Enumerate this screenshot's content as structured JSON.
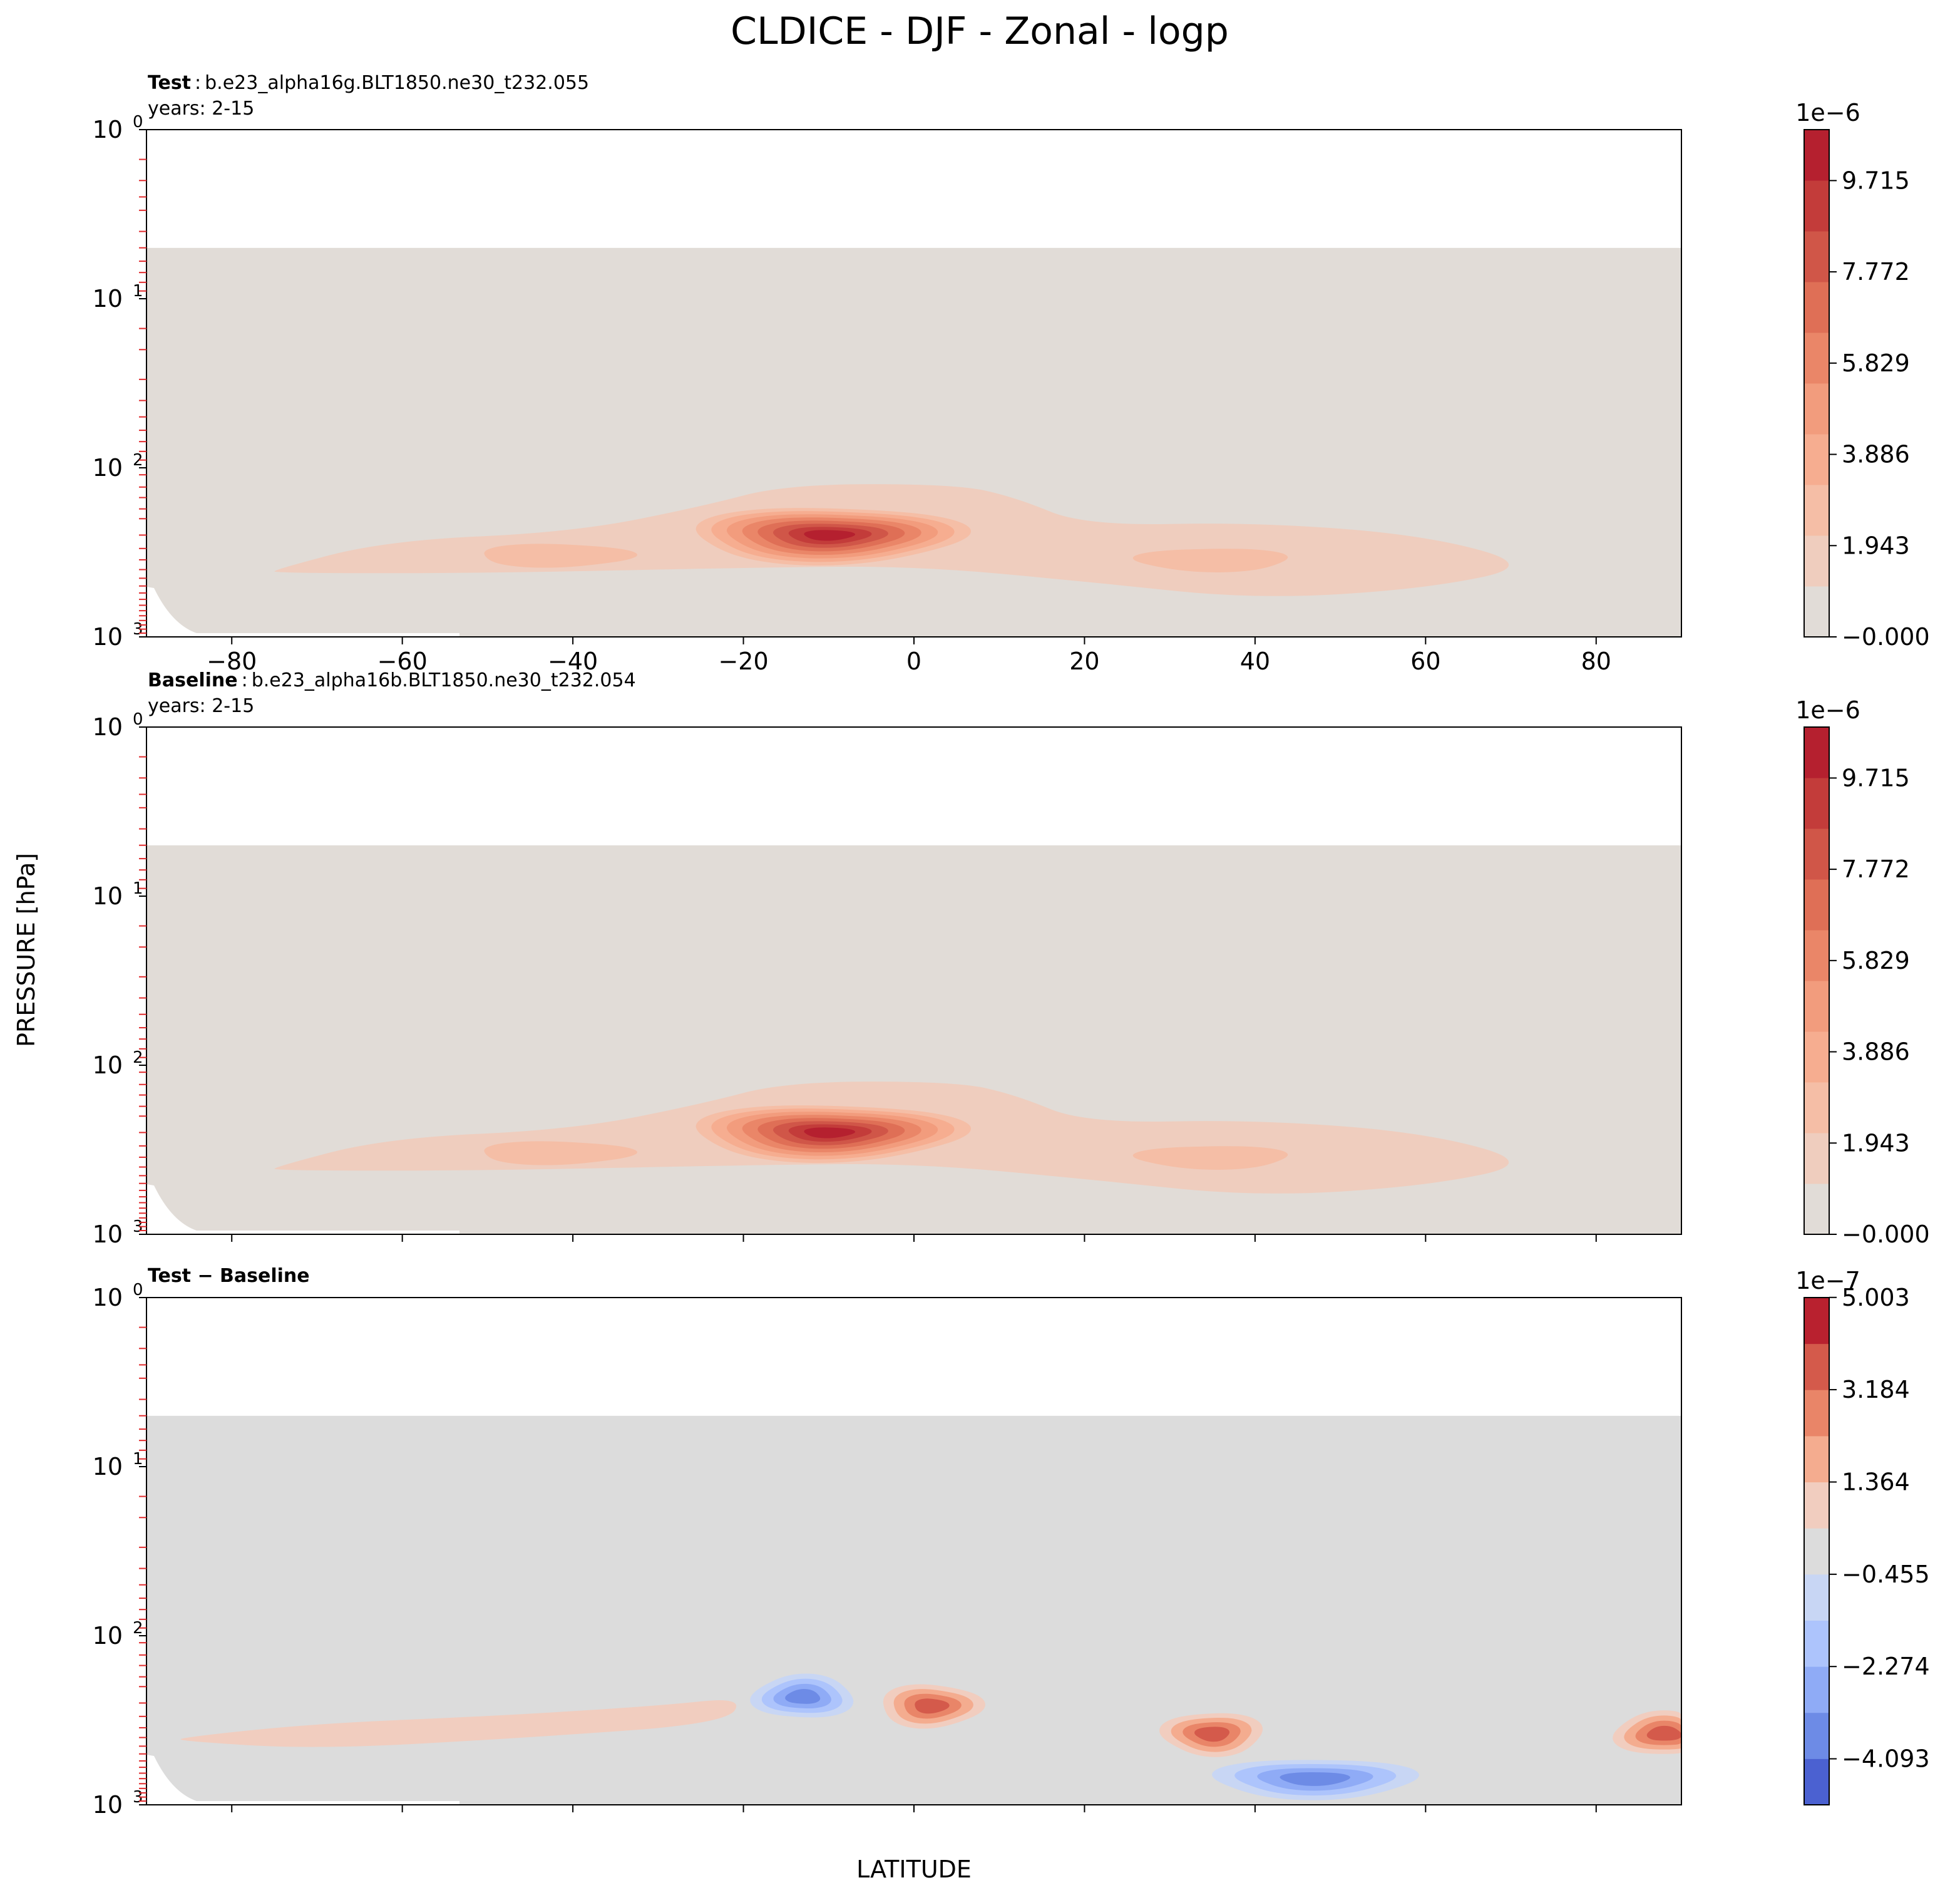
{
  "figure_title": "CLDICE - DJF - Zonal - logp",
  "colors": {
    "background_fill": "#e1dcd7",
    "diff_background_fill": "#dcdcdc",
    "abs_levels": [
      "#e1dcd7",
      "#efcdbe",
      "#f5bea6",
      "#f6ad90",
      "#f29c7d",
      "#ea8668",
      "#df6f56",
      "#d05648",
      "#c33c3a",
      "#b5202f"
    ],
    "diff_levels": [
      "#4b61d1",
      "#6d8be6",
      "#8fabf6",
      "#adc4fc",
      "#c8d6f4",
      "#dcdcdc",
      "#f1cdbf",
      "#f4ac8f",
      "#e98568",
      "#d45a4b",
      "#b9212f"
    ]
  },
  "chart_data": [
    {
      "type": "contour",
      "panel_label": "Test",
      "panel_case": "b.e23_alpha16g.BLT1850.ne30_t232.055",
      "panel_years": "years: 2-15",
      "xlim": [
        -90,
        90
      ],
      "ylim": [
        1000,
        1
      ],
      "yscale": "log",
      "x_ticks": [
        "−80",
        "−60",
        "−40",
        "−20",
        "0",
        "20",
        "40",
        "60",
        "80"
      ],
      "x_tick_values": [
        -80,
        -60,
        -40,
        -20,
        0,
        20,
        40,
        60,
        80
      ],
      "y_tick_labels": [
        "10",
        "10",
        "10",
        "10"
      ],
      "y_tick_exps": [
        "0",
        "1",
        "2",
        "3"
      ],
      "y_tick_values": [
        1,
        10,
        100,
        1000
      ],
      "colorbar": {
        "multiplier": "1e−6",
        "tick_labels": [
          "9.715",
          "7.772",
          "5.829",
          "3.886",
          "1.943",
          "−0.000"
        ],
        "tick_values": [
          9.715,
          7.772,
          5.829,
          3.886,
          1.943,
          0
        ],
        "range": [
          0,
          10.8
        ],
        "n_levels": 10
      },
      "data_top_hpa": 5,
      "features": [
        {
          "center_lat": -10,
          "center_hpa": 250,
          "max_level": 9
        },
        {
          "center_lat": -42,
          "center_hpa": 330,
          "max_level": 2
        },
        {
          "center_lat": 35,
          "center_hpa": 350,
          "max_level": 2
        }
      ]
    },
    {
      "type": "contour",
      "panel_label": "Baseline",
      "panel_case": "b.e23_alpha16b.BLT1850.ne30_t232.054",
      "panel_years": "years: 2-15",
      "xlim": [
        -90,
        90
      ],
      "ylim": [
        1000,
        1
      ],
      "yscale": "log",
      "x_tick_values": [
        -80,
        -60,
        -40,
        -20,
        0,
        20,
        40,
        60,
        80
      ],
      "y_tick_labels": [
        "10",
        "10",
        "10",
        "10"
      ],
      "y_tick_exps": [
        "0",
        "1",
        "2",
        "3"
      ],
      "y_tick_values": [
        1,
        10,
        100,
        1000
      ],
      "colorbar": {
        "multiplier": "1e−6",
        "tick_labels": [
          "9.715",
          "7.772",
          "5.829",
          "3.886",
          "1.943",
          "−0.000"
        ],
        "tick_values": [
          9.715,
          7.772,
          5.829,
          3.886,
          1.943,
          0
        ],
        "range": [
          0,
          10.8
        ],
        "n_levels": 10
      },
      "data_top_hpa": 5,
      "features": [
        {
          "center_lat": -10,
          "center_hpa": 250,
          "max_level": 9
        },
        {
          "center_lat": -42,
          "center_hpa": 330,
          "max_level": 2
        },
        {
          "center_lat": 35,
          "center_hpa": 350,
          "max_level": 2
        }
      ]
    },
    {
      "type": "contour",
      "panel_label": "Test − Baseline",
      "xlim": [
        -90,
        90
      ],
      "ylim": [
        1000,
        1
      ],
      "yscale": "log",
      "x_tick_values": [
        -80,
        -60,
        -40,
        -20,
        0,
        20,
        40,
        60,
        80
      ],
      "y_tick_labels": [
        "10",
        "10",
        "10",
        "10"
      ],
      "y_tick_exps": [
        "0",
        "1",
        "2",
        "3"
      ],
      "y_tick_values": [
        1,
        10,
        100,
        1000
      ],
      "colorbar": {
        "multiplier": "1e−7",
        "tick_labels": [
          "5.003",
          "3.184",
          "1.364",
          "−0.455",
          "−2.274",
          "−4.093"
        ],
        "tick_values": [
          5.003,
          3.184,
          1.364,
          -0.455,
          -2.274,
          -4.093
        ],
        "range": [
          -5.0,
          5.0
        ],
        "n_levels": 11
      },
      "data_top_hpa": 5,
      "features": [
        {
          "center_lat": -13,
          "center_hpa": 230,
          "sign": "negative"
        },
        {
          "center_lat": 2,
          "center_hpa": 260,
          "sign": "positive"
        },
        {
          "center_lat": 35,
          "center_hpa": 380,
          "sign": "positive"
        },
        {
          "center_lat": 47,
          "center_hpa": 700,
          "sign": "negative"
        },
        {
          "center_lat": 88,
          "center_hpa": 380,
          "sign": "positive"
        }
      ]
    }
  ],
  "axes": {
    "xlabel": "LATITUDE",
    "ylabel": "PRESSURE [hPa]"
  }
}
